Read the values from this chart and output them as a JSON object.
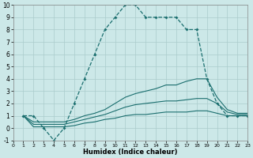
{
  "xlabel": "Humidex (Indice chaleur)",
  "background_color": "#cce8e8",
  "grid_color": "#aacccc",
  "line_color": "#1a6e6e",
  "xlim": [
    0,
    23
  ],
  "ylim": [
    -1,
    10
  ],
  "xticks": [
    0,
    1,
    2,
    3,
    4,
    5,
    6,
    7,
    8,
    9,
    10,
    11,
    12,
    13,
    14,
    15,
    16,
    17,
    18,
    19,
    20,
    21,
    22,
    23
  ],
  "yticks": [
    -1,
    0,
    1,
    2,
    3,
    4,
    5,
    6,
    7,
    8,
    9,
    10
  ],
  "series": [
    {
      "x": [
        1,
        2,
        3,
        4,
        5,
        6,
        7,
        8,
        9,
        10,
        11,
        12,
        13,
        14,
        15,
        16,
        17,
        18,
        19,
        20,
        21,
        22,
        23
      ],
      "y": [
        1,
        1,
        0,
        -1,
        0,
        2,
        4,
        6,
        8,
        9,
        10,
        10,
        9,
        9,
        9,
        9,
        8,
        8,
        4,
        2,
        1,
        1,
        1
      ],
      "dashed": true,
      "marker": true
    },
    {
      "x": [
        1,
        2,
        3,
        4,
        5,
        6,
        7,
        8,
        9,
        10,
        11,
        12,
        13,
        14,
        15,
        16,
        17,
        18,
        19,
        20,
        21,
        22,
        23
      ],
      "y": [
        1,
        0.5,
        0.5,
        0.5,
        0.5,
        0.7,
        1.0,
        1.2,
        1.5,
        2.0,
        2.5,
        2.8,
        3.0,
        3.2,
        3.5,
        3.5,
        3.8,
        4.0,
        4.0,
        2.5,
        1.5,
        1.2,
        1.2
      ],
      "dashed": false,
      "marker": false
    },
    {
      "x": [
        1,
        2,
        3,
        4,
        5,
        6,
        7,
        8,
        9,
        10,
        11,
        12,
        13,
        14,
        15,
        16,
        17,
        18,
        19,
        20,
        21,
        22,
        23
      ],
      "y": [
        1,
        0.3,
        0.3,
        0.3,
        0.3,
        0.5,
        0.7,
        0.9,
        1.1,
        1.4,
        1.7,
        1.9,
        2.0,
        2.1,
        2.2,
        2.2,
        2.3,
        2.4,
        2.4,
        2.0,
        1.3,
        1.1,
        1.1
      ],
      "dashed": false,
      "marker": false
    },
    {
      "x": [
        1,
        2,
        3,
        4,
        5,
        6,
        7,
        8,
        9,
        10,
        11,
        12,
        13,
        14,
        15,
        16,
        17,
        18,
        19,
        20,
        21,
        22,
        23
      ],
      "y": [
        1,
        0.1,
        0.1,
        0.1,
        0.1,
        0.2,
        0.4,
        0.5,
        0.7,
        0.8,
        1.0,
        1.1,
        1.1,
        1.2,
        1.3,
        1.3,
        1.3,
        1.4,
        1.4,
        1.2,
        1.0,
        1.0,
        1.0
      ],
      "dashed": false,
      "marker": false
    }
  ]
}
